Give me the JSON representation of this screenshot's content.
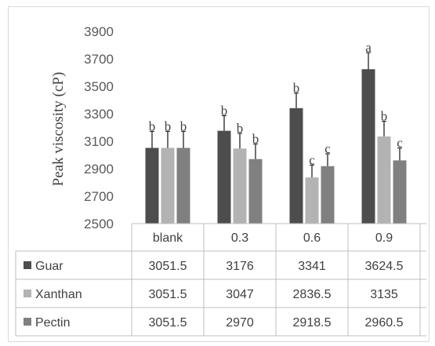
{
  "chart_data": {
    "type": "bar",
    "ylabel": "Peak viscosity (cP)",
    "ylim": [
      2500,
      3900
    ],
    "yticks": [
      2500,
      2700,
      2900,
      3100,
      3300,
      3500,
      3700,
      3900
    ],
    "categories": [
      "blank",
      "0.3",
      "0.6",
      "0.9"
    ],
    "series": [
      {
        "name": "Guar",
        "values": [
          3051.5,
          3176,
          3341,
          3624.5
        ],
        "value_labels": [
          "3051.5",
          "3176",
          "3341",
          "3624.5"
        ],
        "errors": [
          120,
          110,
          110,
          120
        ],
        "letters": [
          "b",
          "b",
          "b",
          "a"
        ],
        "color": "#4d4d4d"
      },
      {
        "name": "Xanthan",
        "values": [
          3051.5,
          3047,
          2836.5,
          3135
        ],
        "value_labels": [
          "3051.5",
          "3047",
          "2836.5",
          "3135"
        ],
        "errors": [
          120,
          110,
          90,
          110
        ],
        "letters": [
          "b",
          "b",
          "c",
          "b"
        ],
        "color": "#b3b3b3"
      },
      {
        "name": "Pectin",
        "values": [
          3051.5,
          2970,
          2918.5,
          2960.5
        ],
        "value_labels": [
          "3051.5",
          "2970",
          "2918.5",
          "2960.5"
        ],
        "errors": [
          120,
          110,
          90,
          90
        ],
        "letters": [
          "b",
          "b",
          "c",
          "c"
        ],
        "color": "#808080"
      }
    ],
    "legend": "data-table",
    "grid": false
  }
}
